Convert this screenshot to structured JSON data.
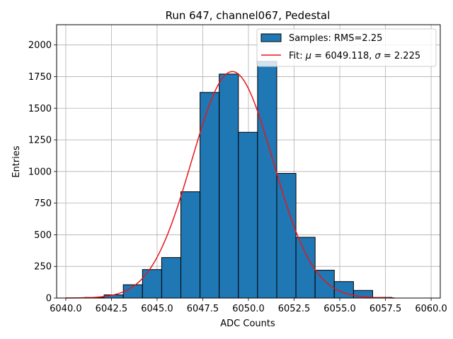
{
  "chart_data": {
    "type": "bar",
    "title": "Run 647, channel067, Pedestal",
    "xlabel": "ADC Counts",
    "ylabel": "Entries",
    "xlim": [
      6039.5,
      6060.5
    ],
    "ylim": [
      0,
      2160
    ],
    "grid": true,
    "legend_position": "top-right",
    "xticks": [
      6040.0,
      6042.5,
      6045.0,
      6047.5,
      6050.0,
      6052.5,
      6055.0,
      6057.5,
      6060.0
    ],
    "xtick_labels": [
      "6040.0",
      "6042.5",
      "6045.0",
      "6047.5",
      "6050.0",
      "6052.5",
      "6055.0",
      "6057.5",
      "6060.0"
    ],
    "yticks": [
      0,
      250,
      500,
      750,
      1000,
      1250,
      1500,
      1750,
      2000
    ],
    "ytick_labels": [
      "0",
      "250",
      "500",
      "750",
      "1000",
      "1250",
      "1500",
      "1750",
      "2000"
    ],
    "histogram": {
      "name": "Samples: RMS=2.25",
      "color": "#1f77b4",
      "edge_color": "#000000",
      "bin_edges": [
        6040.0,
        6041.05,
        6042.1,
        6043.15,
        6044.2,
        6045.25,
        6046.3,
        6047.35,
        6048.4,
        6049.45,
        6050.5,
        6051.55,
        6052.6,
        6053.65,
        6054.7,
        6055.75,
        6056.8,
        6057.85,
        6058.9,
        6060.0
      ],
      "counts": [
        0,
        5,
        25,
        105,
        225,
        320,
        840,
        1625,
        1770,
        1310,
        1870,
        985,
        480,
        220,
        130,
        60,
        5,
        0,
        0
      ]
    },
    "fit": {
      "name": "Fit: μ = 6049.118, σ = 2.225",
      "color": "#e8161a",
      "mu": 6049.118,
      "sigma": 2.225,
      "amplitude": 1790,
      "x_range": [
        6040.0,
        6058.0
      ]
    }
  }
}
